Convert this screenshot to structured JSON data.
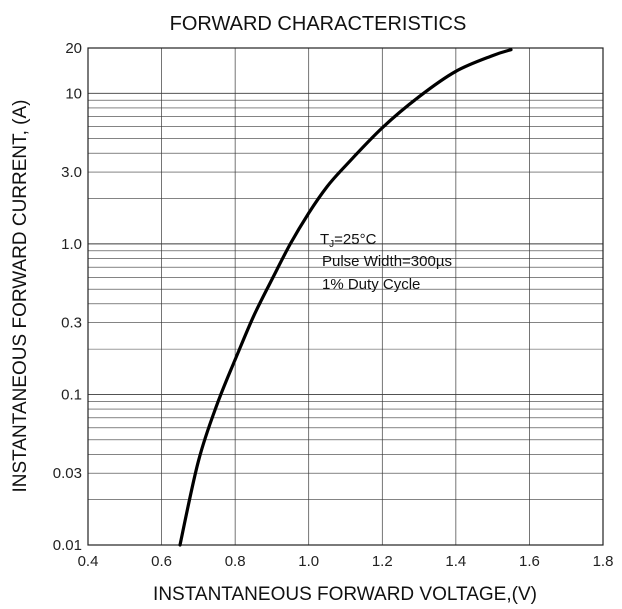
{
  "chart_data": {
    "type": "line",
    "title": "FORWARD CHARACTERISTICS",
    "xlabel": "INSTANTANEOUS FORWARD VOLTAGE,(V)",
    "ylabel": "INSTANTANEOUS FORWARD CURRENT, (A)",
    "x_scale": "linear",
    "y_scale": "log",
    "xlim": [
      0.4,
      1.8
    ],
    "ylim": [
      0.01,
      20
    ],
    "x_ticks": [
      0.4,
      0.6,
      0.8,
      1.0,
      1.2,
      1.4,
      1.6,
      1.8
    ],
    "x_tick_labels": [
      "0.4",
      "0.6",
      "0.8",
      "1.0",
      "1.2",
      "1.4",
      "1.6",
      "1.8"
    ],
    "y_ticks": [
      0.01,
      0.03,
      0.1,
      0.3,
      1.0,
      3.0,
      10,
      20
    ],
    "y_tick_labels": [
      "0.01",
      "0.03",
      "0.1",
      "0.3",
      "1.0",
      "3.0",
      "10",
      "20"
    ],
    "grid": true,
    "series": [
      {
        "x": [
          0.65,
          0.7,
          0.75,
          0.8,
          0.85,
          0.9,
          0.95,
          1.0,
          1.05,
          1.1,
          1.2,
          1.3,
          1.4,
          1.5,
          1.55
        ],
        "y": [
          0.01,
          0.036,
          0.085,
          0.17,
          0.33,
          0.58,
          1.0,
          1.6,
          2.4,
          3.3,
          5.9,
          9.5,
          14.0,
          17.8,
          19.5
        ]
      }
    ],
    "annotation": {
      "line1_main": "T",
      "line1_sub": "J",
      "line1_rest": "=25°C",
      "line2": "Pulse Width=300µs",
      "line3": "1% Duty Cycle"
    }
  },
  "colors": {
    "line": "#000000",
    "grid": "#3a3a3a",
    "frame": "#222222"
  }
}
